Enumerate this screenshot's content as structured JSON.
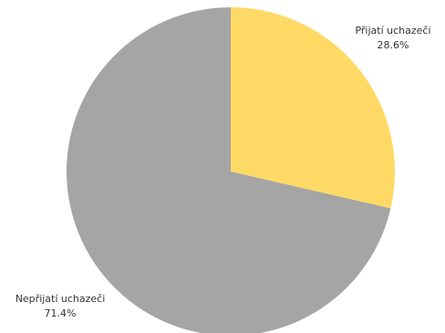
{
  "chart_data": {
    "type": "pie",
    "title": "",
    "slices": [
      {
        "label": "Přijatí uchazeči",
        "value": 28.6,
        "display": "28.6%",
        "color": "#ffd966"
      },
      {
        "label": "Nepřijatí uchazeči",
        "value": 71.4,
        "display": "71.4%",
        "color": "#a5a5a5"
      }
    ],
    "start_angle_deg": 0,
    "direction": "clockwise",
    "legend": "none"
  }
}
